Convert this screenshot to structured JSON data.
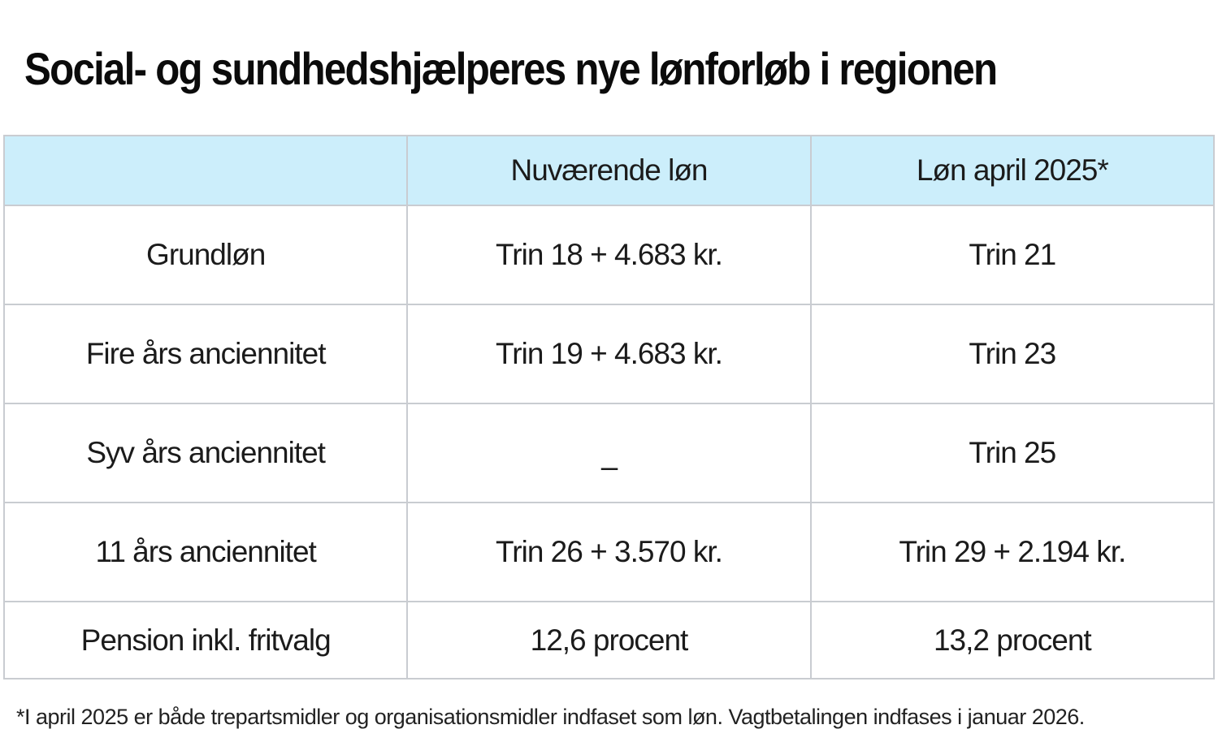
{
  "title": "Social- og sundhedshjælperes nye lønforløb i regionen",
  "footnote": "*I april 2025 er både trepartsmidler og organisationsmidler indfaset som løn. Vagtbetalingen indfases i januar 2026.",
  "colors": {
    "header_bg": "#cceefb",
    "border": "#c9ccd1",
    "text": "#1b1b1b",
    "background": "#ffffff"
  },
  "chart_data": {
    "type": "table",
    "title": "Social- og sundhedshjælperes nye lønforløb i regionen",
    "columns": [
      "",
      "Nuværende løn",
      "Løn april 2025*"
    ],
    "rows": [
      [
        "Grundløn",
        "Trin 18 + 4.683 kr.",
        "Trin 21"
      ],
      [
        "Fire års anciennitet",
        "Trin 19 + 4.683 kr.",
        "Trin 23"
      ],
      [
        "Syv års anciennitet",
        "–",
        "Trin 25"
      ],
      [
        "11 års anciennitet",
        "Trin 26 + 3.570 kr.",
        "Trin 29 + 2.194 kr."
      ],
      [
        "Pension inkl. fritvalg",
        "12,6 procent",
        "13,2 procent"
      ]
    ],
    "footnote": "*I april 2025 er både trepartsmidler og organisationsmidler indfaset som løn. Vagtbetalingen indfases i januar 2026.",
    "layout_hints": {
      "header_fill": "#cceefb",
      "grid": "on",
      "column_count": 3,
      "equal_column_widths": true
    }
  }
}
